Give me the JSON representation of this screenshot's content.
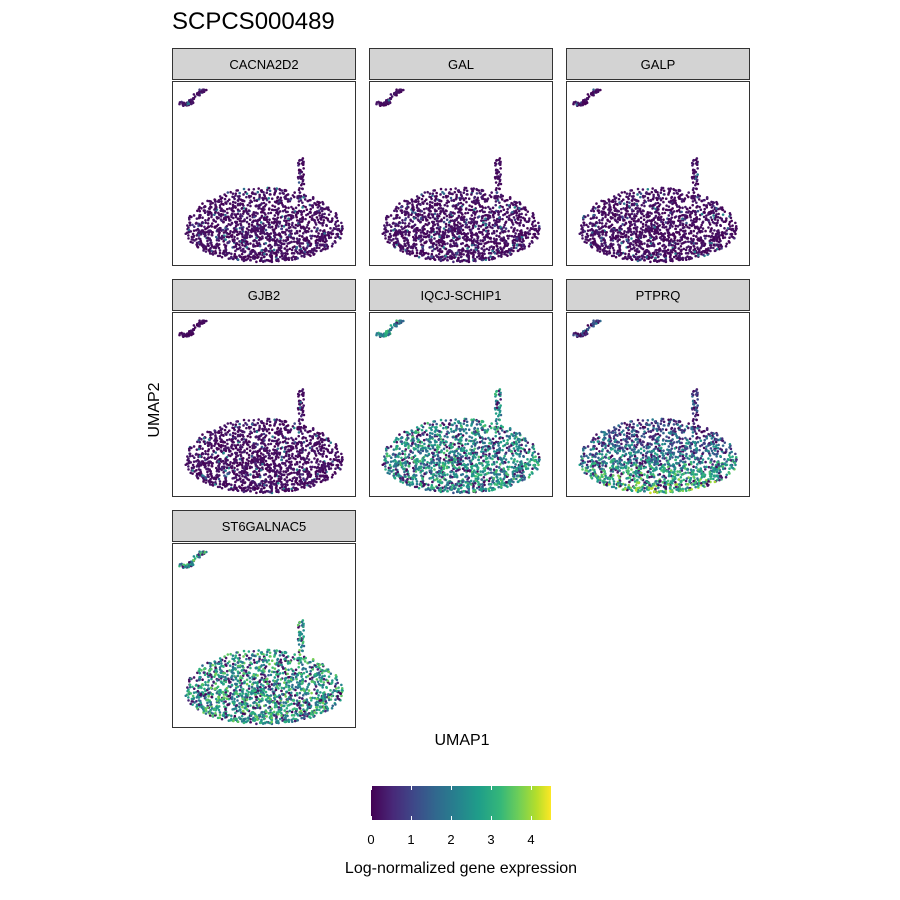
{
  "chart_data": {
    "type": "scatter",
    "title": "SCPCS000489",
    "xlabel": "UMAP1",
    "ylabel": "UMAP2",
    "panels": [
      {
        "gene": "CACNA2D2",
        "mean_expression": 0.25
      },
      {
        "gene": "GAL",
        "mean_expression": 0.15
      },
      {
        "gene": "GALP",
        "mean_expression": 0.1
      },
      {
        "gene": "GJB2",
        "mean_expression": 0.12
      },
      {
        "gene": "IQCJ-SCHIP1",
        "mean_expression": 2.2
      },
      {
        "gene": "PTPRQ",
        "mean_expression": 1.6
      },
      {
        "gene": "ST6GALNAC5",
        "mean_expression": 2.5
      }
    ],
    "legend": {
      "title": "Log-normalized gene expression",
      "ticks": [
        "0",
        "1",
        "2",
        "3",
        "4"
      ],
      "range": [
        0,
        4.5
      ],
      "colors": [
        "#440154",
        "#482878",
        "#3e4989",
        "#31688e",
        "#26828e",
        "#1f9e89",
        "#35b779",
        "#6ece58",
        "#b5de2b",
        "#fde725"
      ],
      "placement": "bottom"
    }
  }
}
